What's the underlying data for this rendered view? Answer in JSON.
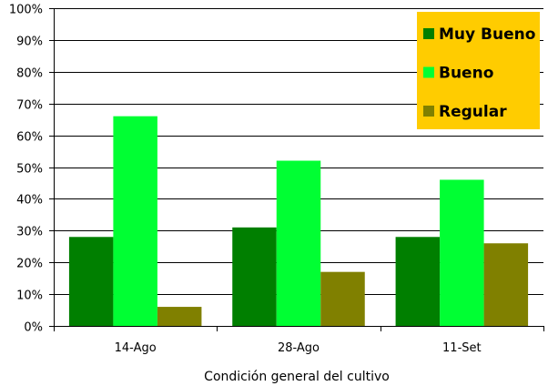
{
  "chart_data": {
    "type": "bar",
    "categories": [
      "14-Ago",
      "28-Ago",
      "11-Set"
    ],
    "series": [
      {
        "name": "Muy Bueno",
        "values": [
          28,
          31,
          28
        ],
        "color": "#007f00"
      },
      {
        "name": "Bueno",
        "values": [
          66,
          52,
          46
        ],
        "color": "#00ff33"
      },
      {
        "name": "Regular",
        "values": [
          6,
          17,
          26
        ],
        "color": "#808000"
      }
    ],
    "ylim": [
      0,
      100
    ],
    "yticks": [
      "0%",
      "10%",
      "20%",
      "30%",
      "40%",
      "50%",
      "60%",
      "70%",
      "80%",
      "90%",
      "100%"
    ],
    "xlabel": "Condición general del cultivo",
    "ylabel": "",
    "grid": true,
    "legend": {
      "position": "top-right",
      "background": "#ffcc00"
    }
  }
}
